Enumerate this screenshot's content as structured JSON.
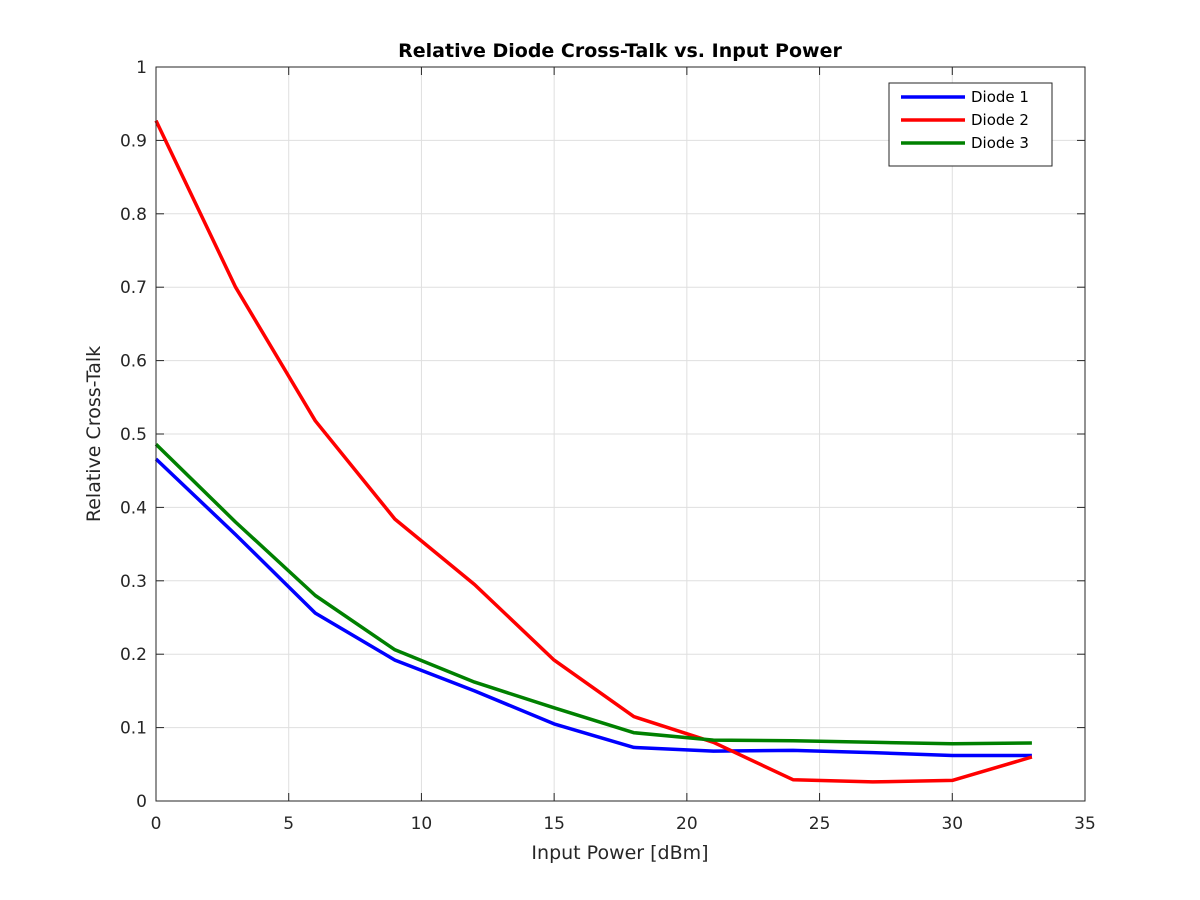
{
  "chart_data": {
    "type": "line",
    "title": "Relative Diode Cross-Talk vs. Input Power",
    "xlabel": "Input Power [dBm]",
    "ylabel": "Relative Cross-Talk",
    "xlim": [
      0,
      35
    ],
    "ylim": [
      0,
      1
    ],
    "xticks": [
      0,
      5,
      10,
      15,
      20,
      25,
      30,
      35
    ],
    "yticks": [
      0,
      0.1,
      0.2,
      0.3,
      0.4,
      0.5,
      0.6,
      0.7,
      0.8,
      0.9,
      1
    ],
    "grid": true,
    "legend_position": "top-right",
    "x": [
      0,
      3,
      6,
      9,
      12,
      15,
      18,
      21,
      24,
      27,
      30,
      33
    ],
    "series": [
      {
        "name": "Diode 1",
        "color": "#0000ff",
        "values": [
          0.466,
          0.363,
          0.256,
          0.192,
          0.15,
          0.105,
          0.073,
          0.068,
          0.069,
          0.066,
          0.062,
          0.062
        ]
      },
      {
        "name": "Diode 2",
        "color": "#ff0000",
        "values": [
          0.927,
          0.7,
          0.518,
          0.384,
          0.295,
          0.192,
          0.115,
          0.08,
          0.029,
          0.026,
          0.028,
          0.06
        ]
      },
      {
        "name": "Diode 3",
        "color": "#008000",
        "values": [
          0.486,
          0.38,
          0.28,
          0.206,
          0.162,
          0.127,
          0.093,
          0.083,
          0.082,
          0.08,
          0.078,
          0.079
        ]
      }
    ]
  }
}
